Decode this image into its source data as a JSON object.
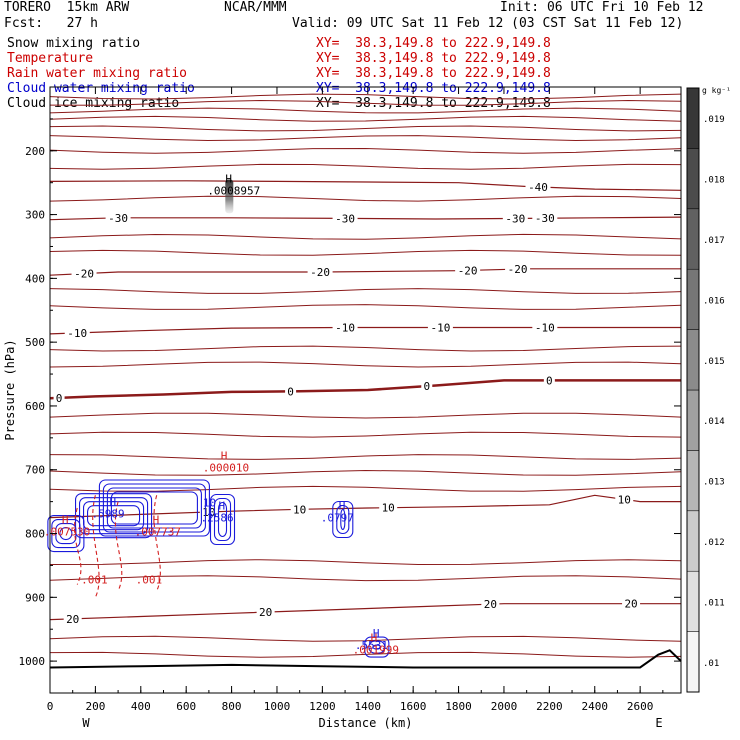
{
  "header": {
    "model": "TORERO  15km ARW",
    "center": "NCAR/MMM",
    "init": "Init: 06 UTC Fri 10 Feb 12",
    "fcst": "Fcst:   27 h",
    "valid": "Valid: 09 UTC Sat 11 Feb 12 (03 CST Sat 11 Feb 12)"
  },
  "fields": [
    {
      "name": "Snow mixing ratio",
      "xy": "XY=  38.3,149.8 to 222.9,149.8",
      "color": "#000000"
    },
    {
      "name": "Temperature",
      "xy": "XY=  38.3,149.8 to 222.9,149.8",
      "color": "#cc0000"
    },
    {
      "name": "Rain water mixing ratio",
      "xy": "XY=  38.3,149.8 to 222.9,149.8",
      "color": "#cc0000"
    },
    {
      "name": "Cloud water mixing ratio",
      "xy": "XY=  38.3,149.8 to 222.9,149.8",
      "color": "#0000cc"
    },
    {
      "name": "Cloud ice mixing ratio",
      "xy": "XY=  38.3,149.8 to 222.9,149.8",
      "color": "#000000"
    }
  ],
  "chart_data": {
    "type": "line",
    "subtype": "vertical cross-section contours",
    "xlabel": "Distance (km)",
    "ylabel": "Pressure (hPa)",
    "xlim": [
      0,
      2780
    ],
    "ylim": [
      1050,
      100
    ],
    "y_scale": "linear, inverted",
    "x_ticks": [
      0,
      200,
      400,
      600,
      800,
      1000,
      1200,
      1400,
      1600,
      1800,
      2000,
      2200,
      2400,
      2600
    ],
    "y_ticks": [
      200,
      300,
      400,
      500,
      600,
      700,
      800,
      900,
      1000
    ],
    "x_end_labels": {
      "left": "W",
      "right": "E"
    },
    "temperature_series": [
      {
        "level": -40,
        "x": [
          0,
          600,
          1000,
          1400,
          1800,
          2100,
          2400,
          2780
        ],
        "y": [
          248,
          247,
          248,
          249,
          250,
          256,
          260,
          262
        ],
        "labels": [
          {
            "text": "-40",
            "x": 2150
          }
        ]
      },
      {
        "level": -30,
        "x": [
          0,
          300,
          800,
          1300,
          1700,
          2100,
          2400,
          2780
        ],
        "y": [
          308,
          305,
          305,
          306,
          307,
          306,
          305,
          304
        ],
        "labels": [
          {
            "text": "-30",
            "x": 300
          },
          {
            "text": "-30",
            "x": 1300
          },
          {
            "text": "-30",
            "x": 2050
          },
          {
            "text": "-30",
            "x": 2180
          }
        ]
      },
      {
        "level": -20,
        "x": [
          0,
          300,
          800,
          1200,
          1800,
          2100,
          2780
        ],
        "y": [
          395,
          390,
          390,
          390,
          388,
          385,
          385
        ],
        "labels": [
          {
            "text": "-20",
            "x": 150
          },
          {
            "text": "-20",
            "x": 1190
          },
          {
            "text": "-20",
            "x": 1840
          },
          {
            "text": "-20",
            "x": 2060
          }
        ]
      },
      {
        "level": -10,
        "x": [
          0,
          400,
          800,
          1300,
          1700,
          2100,
          2780
        ],
        "y": [
          487,
          482,
          478,
          477,
          477,
          477,
          477
        ],
        "labels": [
          {
            "text": "-10",
            "x": 120
          },
          {
            "text": "-10",
            "x": 1300
          },
          {
            "text": "-10",
            "x": 1720
          },
          {
            "text": "-10",
            "x": 2180
          }
        ]
      },
      {
        "level": 0,
        "x": [
          0,
          200,
          500,
          800,
          1100,
          1400,
          1700,
          2000,
          2300,
          2780
        ],
        "y": [
          588,
          585,
          582,
          578,
          577,
          575,
          568,
          560,
          560,
          560
        ],
        "labels": [
          {
            "text": "0",
            "x": 40
          },
          {
            "text": "0",
            "x": 1060
          },
          {
            "text": "0",
            "x": 1660
          },
          {
            "text": "0",
            "x": 2200
          }
        ]
      },
      {
        "level": 10,
        "x": [
          0,
          400,
          800,
          1100,
          1400,
          1800,
          2200,
          2400,
          2600,
          2780
        ],
        "y": [
          775,
          770,
          765,
          762,
          760,
          758,
          755,
          740,
          750,
          750
        ],
        "labels": [
          {
            "text": "10",
            "x": 700
          },
          {
            "text": "10",
            "x": 1100
          },
          {
            "text": "10",
            "x": 1490
          },
          {
            "text": "10",
            "x": 2530
          }
        ]
      },
      {
        "level": 20,
        "x": [
          0,
          400,
          800,
          1200,
          1600,
          2000,
          2400,
          2780
        ],
        "y": [
          935,
          930,
          925,
          920,
          915,
          910,
          910,
          910
        ],
        "labels": [
          {
            "text": "20",
            "x": 100
          },
          {
            "text": "20",
            "x": 950
          },
          {
            "text": "20",
            "x": 1940
          },
          {
            "text": "20",
            "x": 2560
          }
        ]
      }
    ],
    "extremum_labels": [
      {
        "marker": "H",
        "value": ".0008957",
        "x": 790,
        "y": 265,
        "field": "Snow mixing ratio"
      },
      {
        "marker": "H",
        "value": ".000010",
        "x": 770,
        "y": 700,
        "field": "Rain water mixing ratio"
      },
      {
        "marker": "H",
        "value": ".5989",
        "x": 280,
        "y": 772,
        "field": "Cloud water mixing ratio"
      },
      {
        "marker": "H",
        "value": ".2586",
        "x": 760,
        "y": 778,
        "field": "Cloud water mixing ratio"
      },
      {
        "marker": "H",
        "value": ".0797",
        "x": 1290,
        "y": 778,
        "field": "Cloud water mixing ratio"
      },
      {
        "marker": "H",
        "value": ".007530",
        "x": 70,
        "y": 800,
        "field": "Rain water mixing ratio"
      },
      {
        "marker": "H",
        "value": ".007737",
        "x": 470,
        "y": 800,
        "field": "Rain water mixing ratio"
      },
      {
        "marker": "H",
        "value": ".5531",
        "x": 1440,
        "y": 978,
        "field": "Cloud water mixing ratio"
      },
      {
        "marker": "H",
        "value": ".001999",
        "x": 1430,
        "y": 985,
        "field": "Rain water mixing ratio"
      }
    ],
    "rain_labels": [
      {
        "text": ".001",
        "x": 190,
        "y": 878
      },
      {
        "text": ".001",
        "x": 430,
        "y": 878
      }
    ],
    "cloud_labels": [
      {
        "text": "10",
        "x": 700,
        "y": 758
      }
    ],
    "colorbar": {
      "unit": "g kg⁻¹",
      "ticks": [
        ".01",
        ".011",
        ".012",
        ".013",
        ".014",
        ".015",
        ".016",
        ".017",
        ".018",
        ".019"
      ],
      "fill": "grayscale light to dark"
    },
    "terrain": {
      "x": [
        0,
        400,
        800,
        1200,
        1600,
        2000,
        2400,
        2600,
        2680,
        2730,
        2780
      ],
      "y": [
        1010,
        1008,
        1006,
        1008,
        1010,
        1010,
        1010,
        1010,
        990,
        983,
        1000
      ]
    },
    "colors": {
      "temperature": "#8b1a1a",
      "rain": "#d42020",
      "cloud_water": "#1a1adb",
      "snow": "#303030",
      "terrain": "#000000"
    }
  }
}
